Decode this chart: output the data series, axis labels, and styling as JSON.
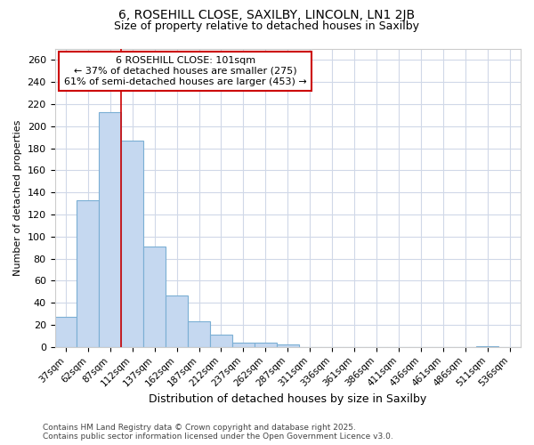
{
  "title1": "6, ROSEHILL CLOSE, SAXILBY, LINCOLN, LN1 2JB",
  "title2": "Size of property relative to detached houses in Saxilby",
  "xlabel": "Distribution of detached houses by size in Saxilby",
  "ylabel": "Number of detached properties",
  "categories": [
    "37sqm",
    "62sqm",
    "87sqm",
    "112sqm",
    "137sqm",
    "162sqm",
    "187sqm",
    "212sqm",
    "237sqm",
    "262sqm",
    "287sqm",
    "311sqm",
    "336sqm",
    "361sqm",
    "386sqm",
    "411sqm",
    "436sqm",
    "461sqm",
    "486sqm",
    "511sqm",
    "536sqm"
  ],
  "values": [
    27,
    133,
    213,
    187,
    91,
    47,
    23,
    11,
    4,
    4,
    2,
    0,
    0,
    0,
    0,
    0,
    0,
    0,
    0,
    1,
    0
  ],
  "bar_color": "#c5d8f0",
  "bar_edge_color": "#7bafd4",
  "vline_x": 3,
  "vline_color": "#cc0000",
  "annotation_text": "6 ROSEHILL CLOSE: 101sqm\n← 37% of detached houses are smaller (275)\n61% of semi-detached houses are larger (453) →",
  "annotation_box_color": "white",
  "annotation_box_edge": "#cc0000",
  "footnote1": "Contains HM Land Registry data © Crown copyright and database right 2025.",
  "footnote2": "Contains public sector information licensed under the Open Government Licence v3.0.",
  "ylim": [
    0,
    270
  ],
  "yticks": [
    0,
    20,
    40,
    60,
    80,
    100,
    120,
    140,
    160,
    180,
    200,
    220,
    240,
    260
  ],
  "background_color": "#ffffff",
  "grid_color": "#d0d8e8"
}
